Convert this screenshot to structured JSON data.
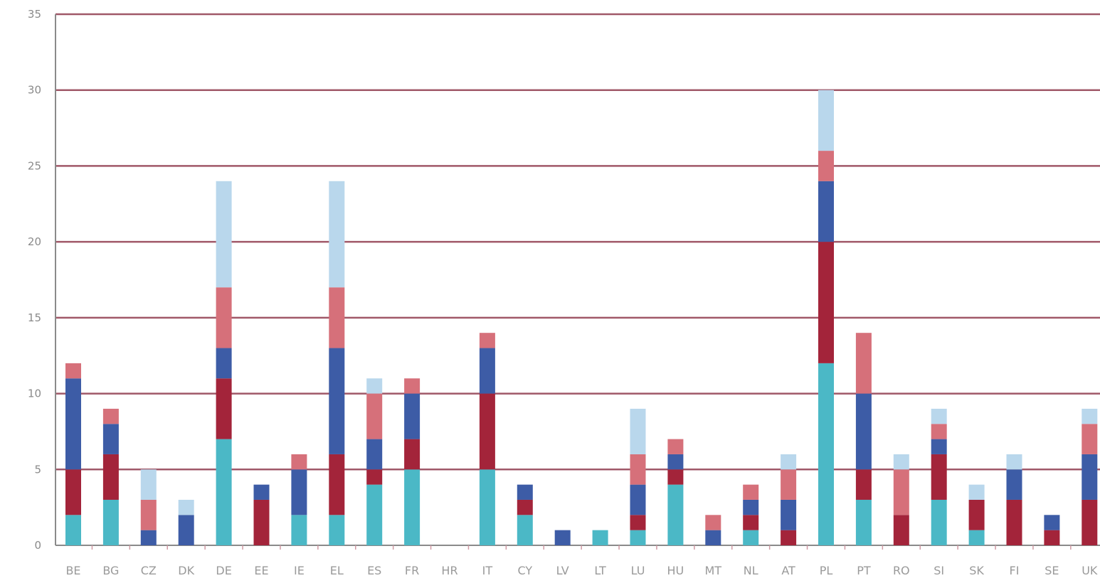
{
  "chart_data": {
    "type": "bar",
    "stacked": true,
    "title": "",
    "xlabel": "",
    "ylabel": "",
    "ylim": [
      0,
      35
    ],
    "yticks": [
      0,
      5,
      10,
      15,
      20,
      25,
      30,
      35
    ],
    "grid": true,
    "legend": "none",
    "categories": [
      "BE",
      "BG",
      "CZ",
      "DK",
      "DE",
      "EE",
      "IE",
      "EL",
      "ES",
      "FR",
      "HR",
      "IT",
      "CY",
      "LV",
      "LT",
      "LU",
      "HU",
      "MT",
      "NL",
      "AT",
      "PL",
      "PT",
      "RO",
      "SI",
      "SK",
      "FI",
      "SE",
      "UK"
    ],
    "series": [
      {
        "color": "#4bb8c6",
        "values": [
          2,
          3,
          0,
          0,
          7,
          0,
          2,
          2,
          4,
          5,
          0,
          5,
          2,
          0,
          1,
          1,
          4,
          0,
          1,
          0,
          12,
          3,
          0,
          3,
          1,
          0,
          0,
          0
        ]
      },
      {
        "color": "#a3243a",
        "values": [
          3,
          3,
          0,
          0,
          4,
          3,
          0,
          4,
          1,
          2,
          0,
          5,
          1,
          0,
          0,
          1,
          1,
          0,
          1,
          1,
          8,
          2,
          2,
          3,
          2,
          3,
          1,
          3
        ]
      },
      {
        "color": "#3d5ca6",
        "values": [
          6,
          2,
          1,
          2,
          2,
          1,
          3,
          7,
          2,
          3,
          0,
          3,
          1,
          1,
          0,
          2,
          1,
          1,
          1,
          2,
          4,
          5,
          0,
          1,
          0,
          2,
          1,
          3
        ]
      },
      {
        "color": "#d6707a",
        "values": [
          1,
          1,
          2,
          0,
          4,
          0,
          1,
          4,
          3,
          1,
          0,
          1,
          0,
          0,
          0,
          2,
          1,
          1,
          1,
          2,
          2,
          4,
          3,
          1,
          0,
          0,
          0,
          2
        ]
      },
      {
        "color": "#b9d7ec",
        "values": [
          0,
          0,
          2,
          1,
          7,
          0,
          0,
          7,
          1,
          0,
          0,
          0,
          0,
          0,
          0,
          3,
          0,
          0,
          0,
          1,
          4,
          0,
          1,
          1,
          1,
          1,
          0,
          1
        ]
      }
    ]
  },
  "colors": {
    "gridline": "#a05868",
    "axis": "#8a8a8a"
  }
}
